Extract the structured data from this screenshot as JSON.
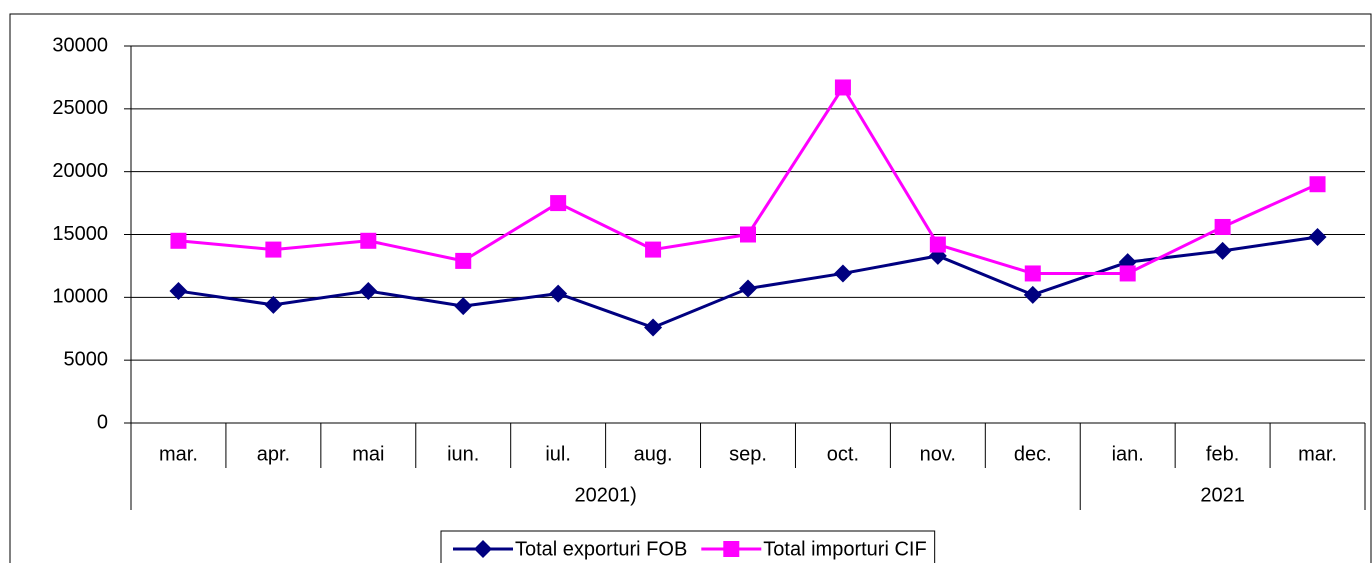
{
  "chart_data": {
    "type": "line",
    "categories": [
      "mar.",
      "apr.",
      "mai",
      "iun.",
      "iul.",
      "aug.",
      "sep.",
      "oct.",
      "nov.",
      "dec.",
      "ian.",
      "feb.",
      "mar."
    ],
    "category_groups": [
      "20201)",
      "20201)",
      "20201)",
      "20201)",
      "20201)",
      "20201)",
      "20201)",
      "20201)",
      "20201)",
      "20201)",
      "2021",
      "2021",
      "2021"
    ],
    "series": [
      {
        "name": "Total exporturi FOB",
        "color": "#000080",
        "marker": "diamond",
        "values": [
          10500,
          9400,
          10500,
          9300,
          10300,
          7600,
          10700,
          11900,
          13300,
          10200,
          12800,
          13700,
          14800
        ]
      },
      {
        "name": "Total importuri CIF",
        "color": "#ff00ff",
        "marker": "square",
        "values": [
          14500,
          13800,
          14500,
          12900,
          17500,
          13800,
          15000,
          26700,
          14200,
          11900,
          11900,
          15600,
          19000
        ]
      }
    ],
    "ylim": [
      0,
      30000
    ],
    "yticks": [
      0,
      5000,
      10000,
      15000,
      20000,
      25000,
      30000
    ],
    "grid": true,
    "legend": "bottom"
  }
}
